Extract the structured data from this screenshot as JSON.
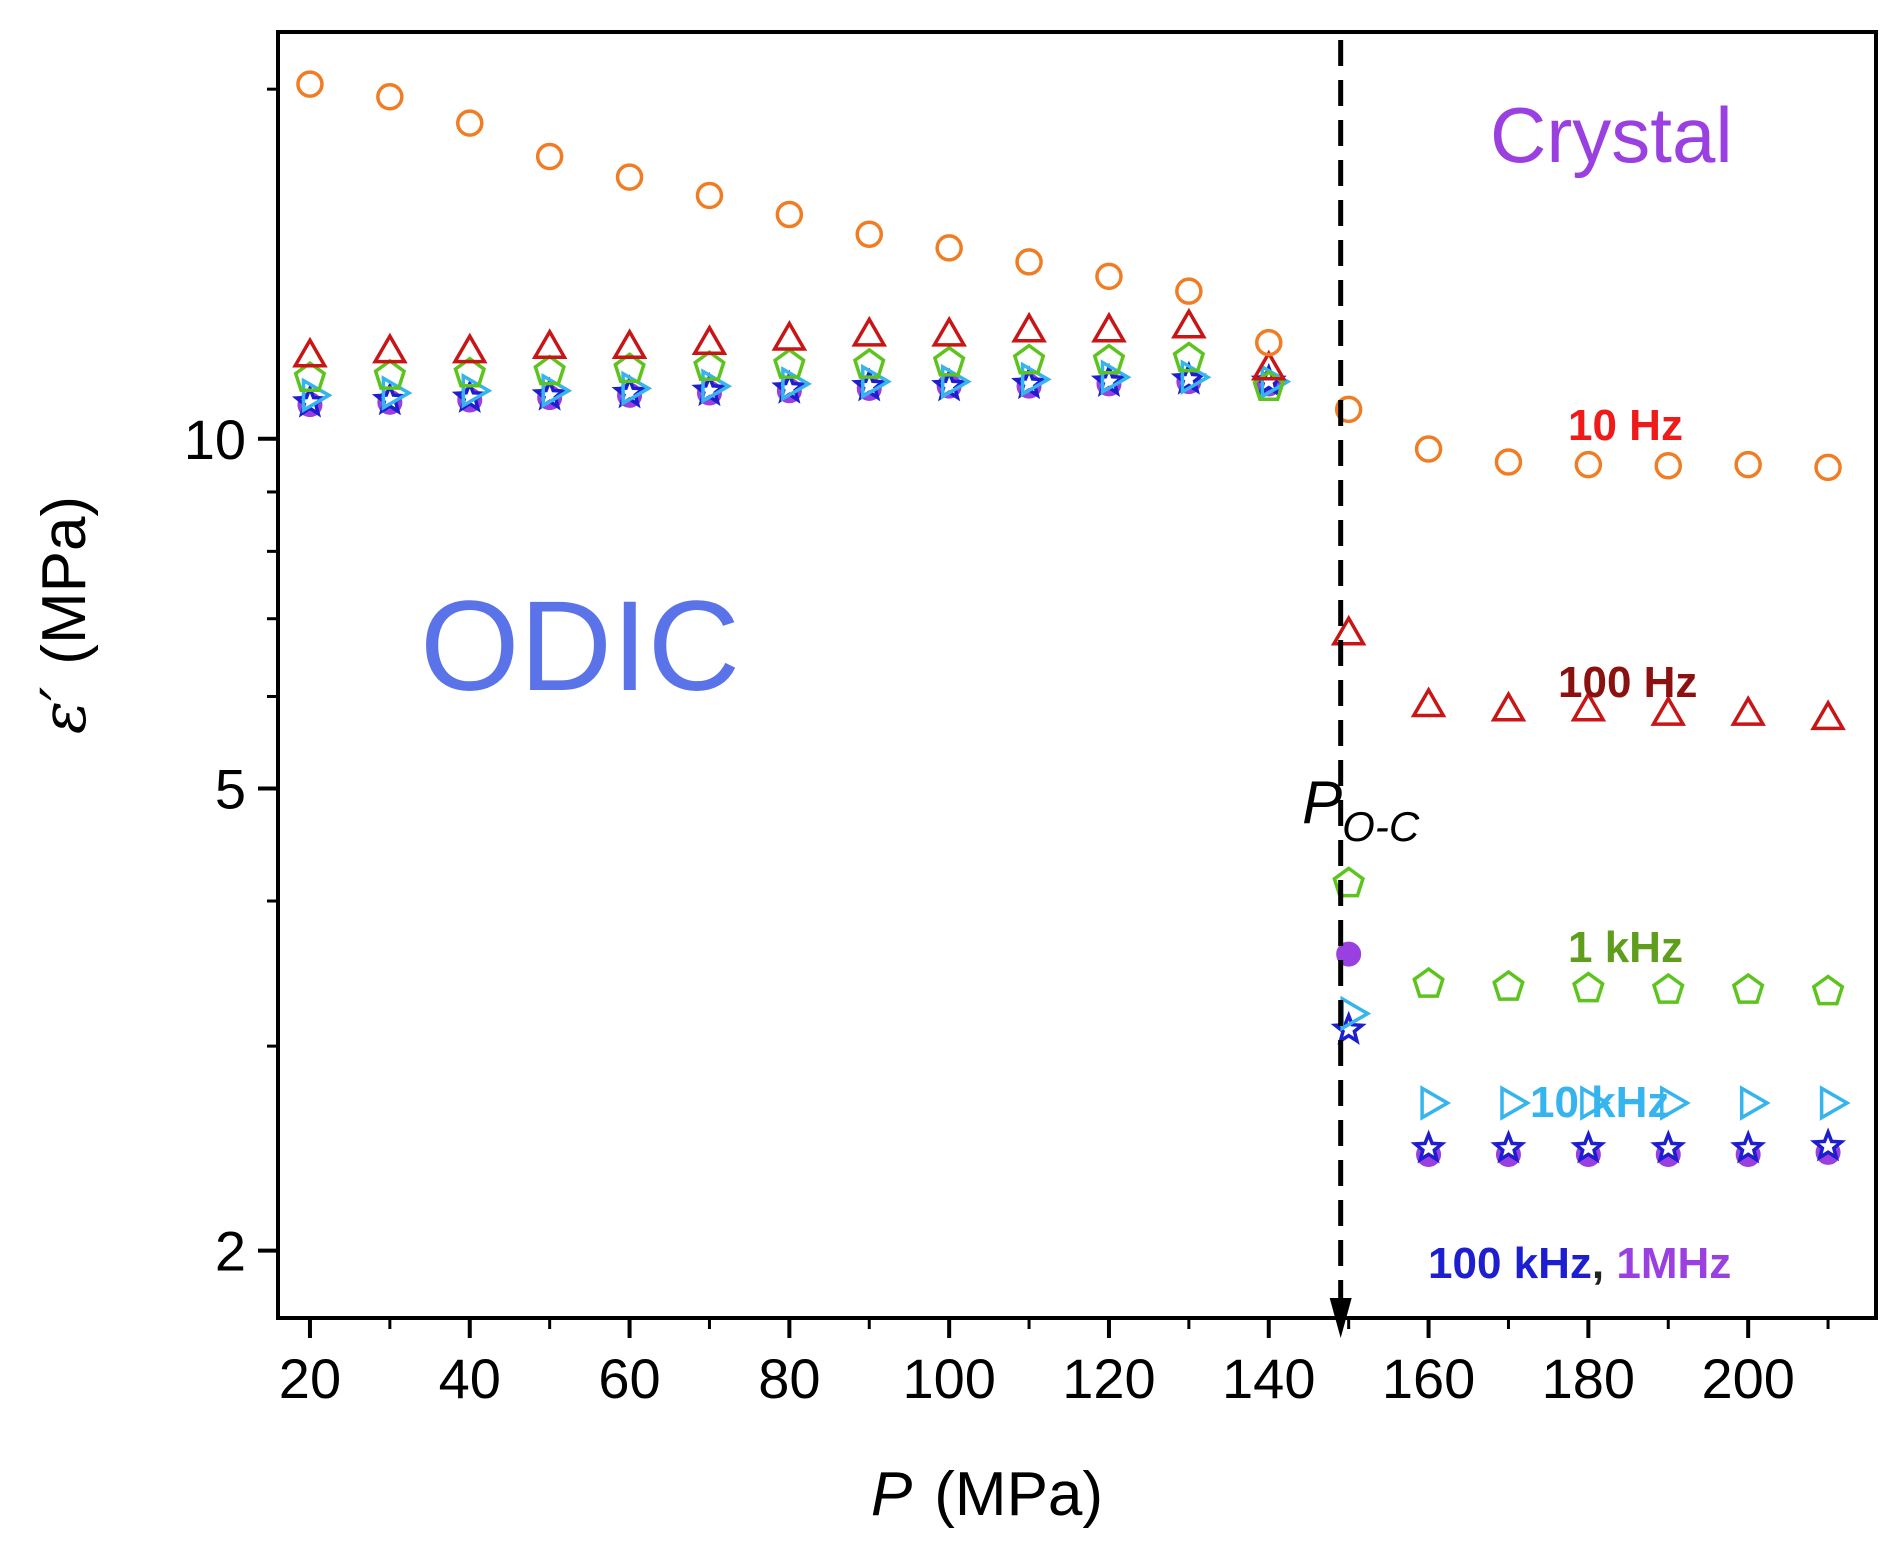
{
  "chart_data": {
    "type": "scatter",
    "title": "",
    "xlabel": {
      "symbol": "P",
      "unit": "(MPa)"
    },
    "ylabel": {
      "symbol": "ε′",
      "unit": "(MPa)"
    },
    "xlim": [
      16,
      216
    ],
    "ylim": [
      1.75,
      22.4
    ],
    "yscale": "log",
    "xticks": [
      20,
      40,
      60,
      80,
      100,
      120,
      140,
      160,
      180,
      200
    ],
    "yticks": [
      2,
      5,
      10
    ],
    "yticks_minor": [
      3,
      4,
      6,
      7,
      8,
      9,
      20
    ],
    "grid": false,
    "x": [
      20,
      30,
      40,
      50,
      60,
      70,
      80,
      90,
      100,
      110,
      120,
      130,
      140,
      150,
      160,
      170,
      180,
      190,
      200,
      210
    ],
    "series": [
      {
        "name": "10 Hz",
        "marker": "circle-open",
        "color": "#f07d24",
        "values": [
          20.2,
          19.7,
          18.7,
          17.5,
          16.8,
          16.2,
          15.6,
          15.0,
          14.6,
          14.2,
          13.8,
          13.4,
          12.1,
          10.6,
          9.8,
          9.55,
          9.5,
          9.48,
          9.5,
          9.45
        ]
      },
      {
        "name": "100 Hz",
        "marker": "triangle-open",
        "color": "#c81616",
        "values": [
          11.8,
          11.9,
          11.9,
          12.0,
          12.0,
          12.1,
          12.2,
          12.3,
          12.3,
          12.4,
          12.4,
          12.5,
          11.5,
          6.8,
          5.9,
          5.85,
          5.85,
          5.8,
          5.8,
          5.75
        ]
      },
      {
        "name": "1 kHz",
        "marker": "pentagon-open",
        "color": "#5dc41e",
        "values": [
          11.3,
          11.35,
          11.4,
          11.45,
          11.5,
          11.55,
          11.6,
          11.6,
          11.65,
          11.7,
          11.7,
          11.75,
          11.1,
          4.15,
          3.4,
          3.38,
          3.37,
          3.36,
          3.36,
          3.35
        ]
      },
      {
        "name": "10 kHz",
        "marker": "triangle-right-open",
        "color": "#36b4ee",
        "values": [
          10.9,
          10.95,
          11.0,
          11.0,
          11.05,
          11.1,
          11.15,
          11.2,
          11.2,
          11.25,
          11.3,
          11.3,
          11.2,
          3.2,
          2.68,
          2.68,
          2.68,
          2.68,
          2.68,
          2.68
        ]
      },
      {
        "name": "100 kHz",
        "marker": "star-open",
        "color": "#1c1ecf",
        "values": [
          10.75,
          10.8,
          10.85,
          10.9,
          10.95,
          11.0,
          11.05,
          11.1,
          11.1,
          11.15,
          11.2,
          11.25,
          11.2,
          3.1,
          2.45,
          2.45,
          2.45,
          2.45,
          2.45,
          2.46
        ]
      },
      {
        "name": "1MHz",
        "marker": "circle-filled",
        "color": "#9a3fe0",
        "values": [
          10.7,
          10.75,
          10.8,
          10.85,
          10.9,
          10.95,
          11.0,
          11.05,
          11.1,
          11.1,
          11.15,
          11.2,
          11.15,
          3.6,
          2.42,
          2.42,
          2.42,
          2.42,
          2.42,
          2.43
        ]
      }
    ],
    "transition": {
      "x": 149,
      "label_main": "P",
      "label_sub": "O-C"
    },
    "annotations": [
      {
        "text": "ODIC",
        "color": "#5b73e8"
      },
      {
        "text": "Crystal",
        "color": "#9a3fe0"
      },
      {
        "text": "10 Hz",
        "color": "#ef1a1a"
      },
      {
        "text": "100 Hz",
        "color": "#8b1010"
      },
      {
        "text": "1 kHz",
        "color": "#5e9e1c"
      },
      {
        "text": "10 kHz",
        "color": "#36b4ee"
      },
      {
        "text": "100 kHz",
        "color": "#1c1ecf"
      },
      {
        "text": ", ",
        "color": "#222222"
      },
      {
        "text": "1MHz",
        "color": "#9a3fe0"
      }
    ]
  }
}
